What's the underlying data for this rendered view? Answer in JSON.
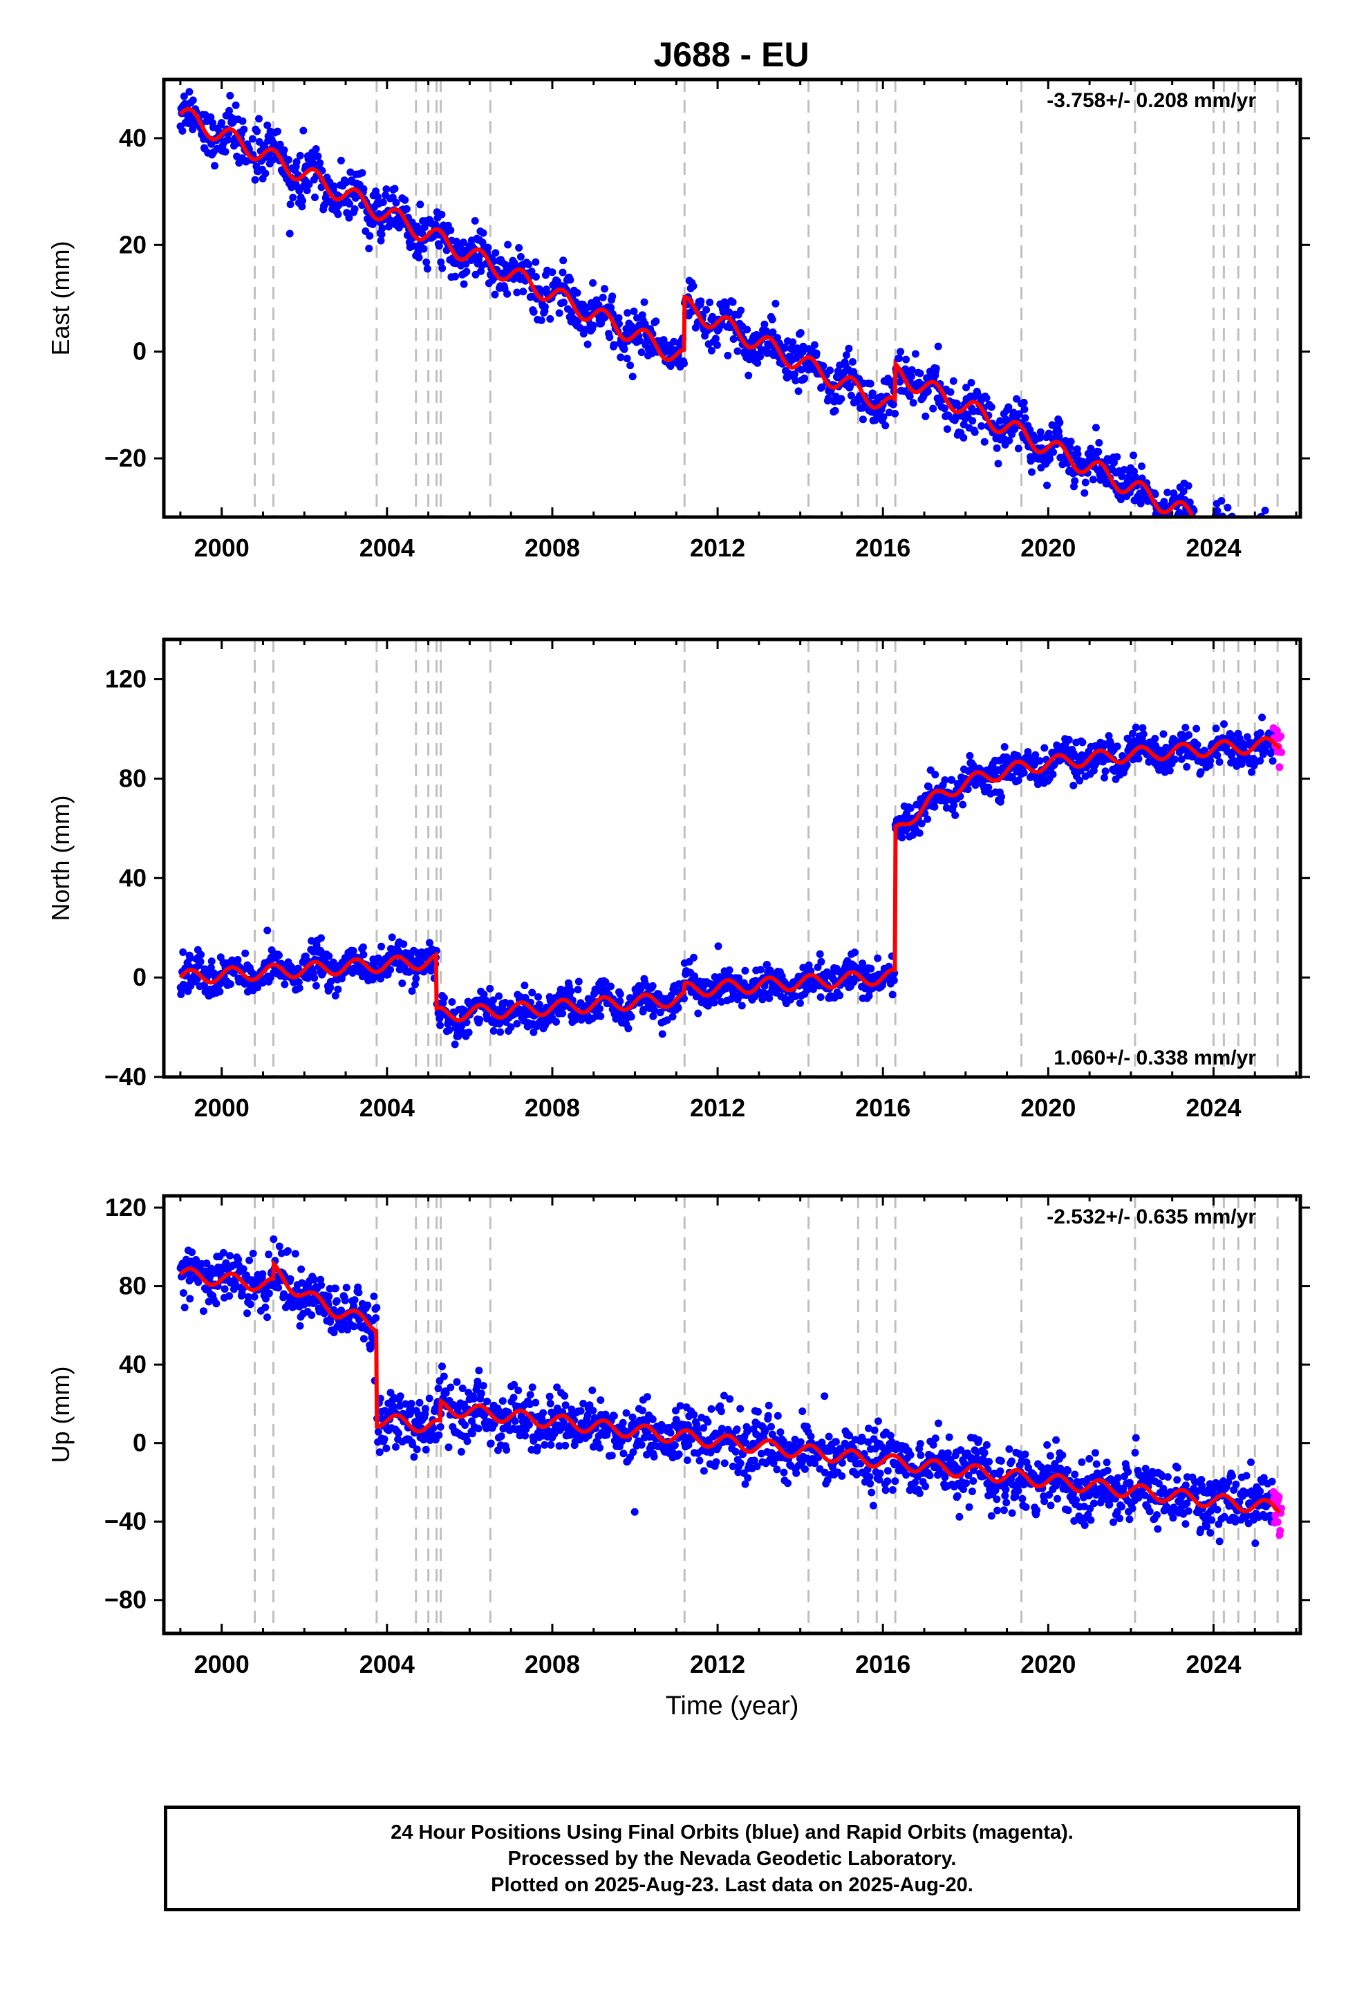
{
  "title": "J688 - EU",
  "colors": {
    "final_orbits": "#0000ff",
    "rapid_orbits": "#ff00ff",
    "model": "#ff0000",
    "event_lines": "#c0c0c0",
    "frame": "#000000"
  },
  "chart_data": [
    {
      "type": "scatter",
      "panel": "east",
      "ylabel": "East (mm)",
      "xlabel": "",
      "xlim": [
        1998.6,
        2026.1
      ],
      "ylim": [
        -31,
        51
      ],
      "xticks": [
        2000,
        2004,
        2008,
        2012,
        2016,
        2020,
        2024
      ],
      "yticks": [
        -20,
        0,
        20,
        40
      ],
      "rate_text": "-3.758+/- 0.208 mm/yr",
      "rate_position": "top-right",
      "grid": false,
      "event_lines": [
        2000.8,
        2001.25,
        2003.75,
        2004.7,
        2005.0,
        2005.2,
        2005.3,
        2006.5,
        2011.2,
        2014.2,
        2015.4,
        2015.85,
        2016.3,
        2019.35,
        2022.1,
        2024.0,
        2024.25,
        2024.6,
        2025.0,
        2025.55
      ],
      "model": {
        "rate": -3.758,
        "annual_amp": 1.8,
        "segments": [
          {
            "from": 1999.0,
            "to": 2011.2,
            "base_year": 1999.0,
            "base": 44.5
          },
          {
            "from": 2011.2,
            "to": 2016.3,
            "base_year": 2011.2,
            "base": 8.5
          },
          {
            "from": 2016.3,
            "to": 2025.6,
            "base_year": 2016.3,
            "base": -4.0
          }
        ]
      },
      "scatter_sd": 2.2,
      "rapid_range": [
        2025.45,
        2025.64
      ]
    },
    {
      "type": "scatter",
      "panel": "north",
      "ylabel": "North (mm)",
      "xlabel": "",
      "xlim": [
        1998.6,
        2026.1
      ],
      "ylim": [
        -40,
        136
      ],
      "xticks": [
        2000,
        2004,
        2008,
        2012,
        2016,
        2020,
        2024
      ],
      "yticks": [
        -40,
        0,
        40,
        80,
        120
      ],
      "rate_text": "1.060+/- 0.338 mm/yr",
      "rate_position": "bottom-right",
      "grid": false,
      "event_lines": [
        2000.8,
        2001.25,
        2003.75,
        2004.7,
        2005.0,
        2005.2,
        2005.3,
        2006.5,
        2011.2,
        2014.2,
        2015.4,
        2015.85,
        2016.3,
        2019.35,
        2022.1,
        2024.0,
        2024.25,
        2024.6,
        2025.0,
        2025.55
      ],
      "model": {
        "rate": 1.06,
        "annual_amp": 2.8,
        "segments": [
          {
            "from": 1999.0,
            "to": 2005.2,
            "base_year": 1999.0,
            "base": 0.0
          },
          {
            "from": 2005.2,
            "to": 2011.2,
            "base_year": 2005.2,
            "base": -15.0
          },
          {
            "from": 2011.2,
            "to": 2016.3,
            "base_year": 2011.2,
            "base": -5.0
          },
          {
            "from": 2016.3,
            "to": 2025.6,
            "base_year": 2016.3,
            "base": 84.0,
            "postseismic": {
              "amp": 26,
              "tau": 1.4
            }
          }
        ]
      },
      "scatter_sd": 3.6,
      "rapid_range": [
        2025.45,
        2025.64
      ]
    },
    {
      "type": "scatter",
      "panel": "up",
      "ylabel": "Up (mm)",
      "xlabel": "Time (year)",
      "xlim": [
        1998.6,
        2026.1
      ],
      "ylim": [
        -97,
        126
      ],
      "xticks": [
        2000,
        2004,
        2008,
        2012,
        2016,
        2020,
        2024
      ],
      "yticks": [
        -80,
        -40,
        0,
        40,
        80,
        120
      ],
      "rate_text": "-2.532+/- 0.635 mm/yr",
      "rate_position": "top-right",
      "grid": false,
      "event_lines": [
        2000.8,
        2001.25,
        2003.75,
        2004.7,
        2005.0,
        2005.2,
        2005.3,
        2006.5,
        2011.2,
        2014.2,
        2015.4,
        2015.85,
        2016.3,
        2019.35,
        2022.1,
        2024.0,
        2024.25,
        2024.6,
        2025.0,
        2025.55
      ],
      "model": {
        "rate": -2.532,
        "annual_amp": 3.5,
        "segments": [
          {
            "from": 1999.0,
            "to": 2001.25,
            "base_year": 1999.0,
            "base": 86.0
          },
          {
            "from": 2001.25,
            "to": 2003.75,
            "base_year": 2001.25,
            "base": 88.0,
            "postseismic": {
              "amp": -26,
              "tau": 1.5
            }
          },
          {
            "from": 2003.75,
            "to": 2005.3,
            "base_year": 2003.75,
            "base": 12.0
          },
          {
            "from": 2005.3,
            "to": 2025.6,
            "base_year": 2005.3,
            "base": 18.0
          }
        ]
      },
      "scatter_sd": 7.5,
      "rapid_range": [
        2025.45,
        2025.64
      ]
    }
  ],
  "caption": {
    "line1": "24 Hour Positions Using Final Orbits (blue) and Rapid Orbits (magenta).",
    "line2": "Processed by the Nevada Geodetic Laboratory.",
    "line3": "Plotted on 2025-Aug-23. Last data on 2025-Aug-20."
  }
}
